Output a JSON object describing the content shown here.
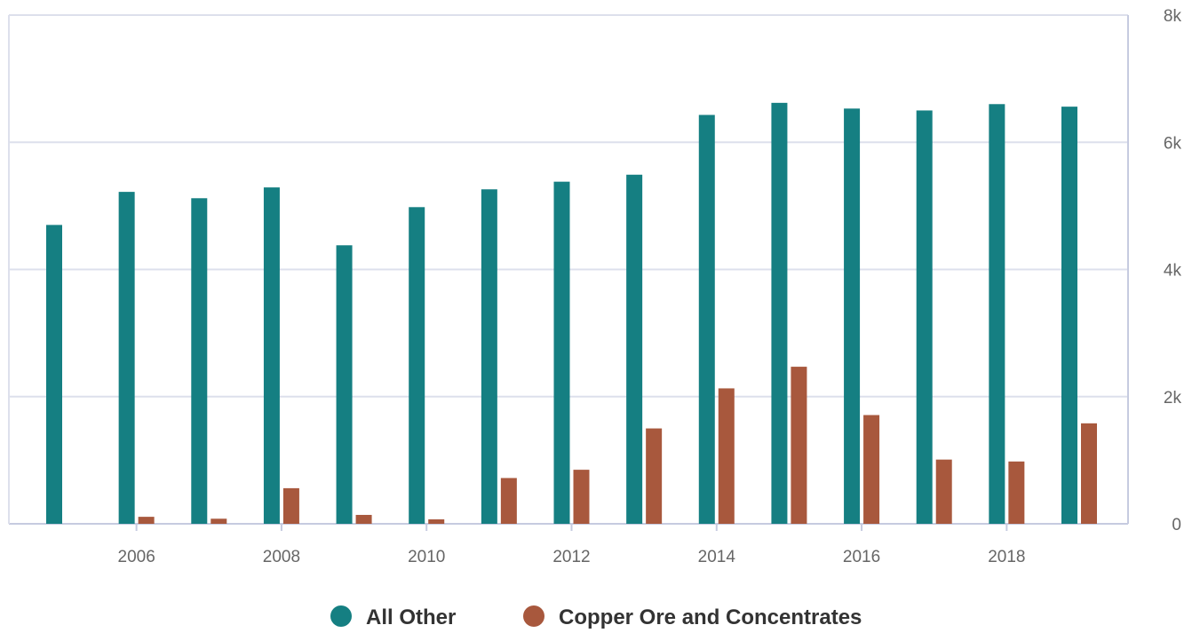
{
  "chart_data": {
    "type": "bar",
    "x": [
      2005,
      2006,
      2007,
      2008,
      2009,
      2010,
      2011,
      2012,
      2013,
      2014,
      2015,
      2016,
      2017,
      2018,
      2019
    ],
    "x_tick_labels": [
      "2006",
      "2008",
      "2010",
      "2012",
      "2014",
      "2016",
      "2018"
    ],
    "y_tick_labels": [
      "0",
      "2k",
      "4k",
      "6k",
      "8k"
    ],
    "ylim": [
      0,
      8000
    ],
    "yaxis_side": "right",
    "grid": true,
    "legend_position": "bottom-center",
    "series": [
      {
        "name": "All Other",
        "color": "#157f82",
        "values": [
          4700,
          5220,
          5120,
          5290,
          4380,
          4980,
          5260,
          5380,
          5490,
          6430,
          6620,
          6530,
          6500,
          6600,
          6560
        ]
      },
      {
        "name": "Copper Ore and Concentrates",
        "color": "#a8583d",
        "values": [
          0,
          110,
          80,
          560,
          140,
          70,
          720,
          850,
          1500,
          2130,
          2470,
          1710,
          1010,
          980,
          1580
        ]
      }
    ]
  }
}
